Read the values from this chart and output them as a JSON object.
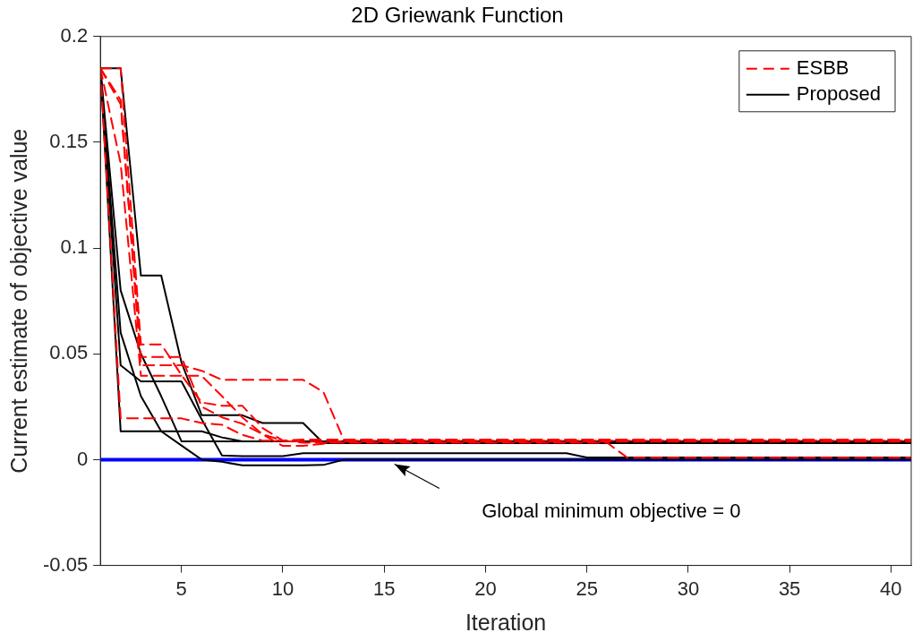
{
  "chart_data": {
    "type": "line",
    "title": "2D Griewank Function",
    "xlabel": "Iteration",
    "ylabel": "Current estimate of objective value",
    "x": [
      1,
      2,
      3,
      4,
      5,
      6,
      7,
      8,
      9,
      10,
      11,
      12,
      13,
      14,
      15,
      16,
      17,
      18,
      19,
      20,
      21,
      22,
      23,
      24,
      25,
      26,
      27,
      28,
      29,
      30,
      31,
      32,
      33,
      34,
      35,
      36,
      37,
      38,
      39,
      40,
      41
    ],
    "xlim": [
      1,
      41
    ],
    "xticks": [
      5,
      10,
      15,
      20,
      25,
      30,
      35,
      40
    ],
    "ylim": [
      -0.05,
      0.2
    ],
    "yticks": [
      -0.05,
      0,
      0.05,
      0.1,
      0.15,
      0.2
    ],
    "grid": false,
    "legend": "top right",
    "marker": "none",
    "series": [
      {
        "name": "ESBB",
        "color": "#ff0000",
        "line_style": "dashed",
        "values": [
          0.185,
          0.185,
          0.0545,
          0.0545,
          0.04,
          0.027,
          0.0255,
          0.0255,
          0.015,
          0.009,
          0.0095,
          0.0095,
          0.0095,
          0.0095,
          0.0095,
          0.0095,
          0.0095,
          0.0095,
          0.0095,
          0.0095,
          0.0095,
          0.0095,
          0.0095,
          0.0095,
          0.0095,
          0.0095,
          0.0095,
          0.0095,
          0.0095,
          0.0095,
          0.0095,
          0.0095,
          0.0095,
          0.0095,
          0.0095,
          0.0095,
          0.0095,
          0.0095,
          0.0095,
          0.0095,
          0.0095
        ]
      },
      {
        "color": "#ff0000",
        "line_style": "dashed",
        "values": [
          0.185,
          0.168,
          0.0485,
          0.0485,
          0.0485,
          0.025,
          0.02,
          0.017,
          0.012,
          0.0065,
          0.0065,
          0.0075,
          0.009,
          0.009,
          0.009,
          0.009,
          0.009,
          0.009,
          0.009,
          0.009,
          0.009,
          0.009,
          0.009,
          0.009,
          0.009,
          0.009,
          0.009,
          0.009,
          0.009,
          0.009,
          0.009,
          0.009,
          0.009,
          0.009,
          0.009,
          0.009,
          0.009,
          0.009,
          0.009,
          0.009,
          0.009
        ]
      },
      {
        "color": "#ff0000",
        "line_style": "dashed",
        "values": [
          0.185,
          0.14,
          0.0396,
          0.0396,
          0.0396,
          0.0396,
          0.03,
          0.02,
          0.012,
          0.009,
          0.008,
          0.008,
          0.008,
          0.008,
          0.008,
          0.008,
          0.008,
          0.008,
          0.008,
          0.008,
          0.008,
          0.008,
          0.008,
          0.008,
          0.008,
          0.008,
          0.0009,
          0.0009,
          0.0009,
          0.0009,
          0.0009,
          0.0009,
          0.0009,
          0.0009,
          0.0009,
          0.0009,
          0.0009,
          0.0009,
          0.0009,
          0.0009,
          0.0009
        ]
      },
      {
        "color": "#ff0000",
        "line_style": "dashed",
        "values": [
          0.185,
          0.17,
          0.0446,
          0.0446,
          0.0446,
          0.042,
          0.0377,
          0.0377,
          0.0377,
          0.0377,
          0.0377,
          0.032,
          0.0095,
          0.0095,
          0.0095,
          0.0095,
          0.0095,
          0.0095,
          0.0095,
          0.0095,
          0.0095,
          0.0095,
          0.0095,
          0.0095,
          0.0095,
          0.0095,
          0.0095,
          0.0095,
          0.0095,
          0.0095,
          0.0095,
          0.0095,
          0.0095,
          0.0095,
          0.0095,
          0.0095,
          0.0095,
          0.0095,
          0.0095,
          0.0095,
          0.0095
        ]
      },
      {
        "color": "#ff0000",
        "line_style": "dashed",
        "values": [
          0.185,
          0.0195,
          0.0195,
          0.0195,
          0.0195,
          0.0173,
          0.0165,
          0.0117,
          0.009,
          0.009,
          0.0085,
          0.0085,
          0.0085,
          0.0085,
          0.0085,
          0.0085,
          0.0085,
          0.0085,
          0.0085,
          0.0085,
          0.0085,
          0.0085,
          0.0085,
          0.0085,
          0.0085,
          0.0085,
          0.0085,
          0.0085,
          0.0085,
          0.0085,
          0.0085,
          0.0085,
          0.0085,
          0.0085,
          0.0085,
          0.0085,
          0.0085,
          0.0085,
          0.0085,
          0.0085,
          0.0085
        ]
      },
      {
        "name": "Proposed",
        "color": "#000000",
        "line_style": "solid",
        "values": [
          0.185,
          0.185,
          0.087,
          0.087,
          0.046,
          0.021,
          0.021,
          0.021,
          0.0173,
          0.0173,
          0.0173,
          0.0078,
          0.0078,
          0.0078,
          0.0078,
          0.0078,
          0.0078,
          0.0078,
          0.0078,
          0.0078,
          0.0078,
          0.0078,
          0.0078,
          0.0078,
          0.0078,
          0.0078,
          0.0078,
          0.0078,
          0.0078,
          0.0078,
          0.0078,
          0.0078,
          0.0078,
          0.0078,
          0.0078,
          0.0078,
          0.0078,
          0.0078,
          0.0078,
          0.0078,
          0.0078
        ]
      },
      {
        "color": "#000000",
        "line_style": "solid",
        "values": [
          0.185,
          0.0446,
          0.037,
          0.037,
          0.037,
          0.019,
          0.002,
          0.0017,
          0.0017,
          0.0017,
          0.003,
          0.003,
          0.003,
          0.003,
          0.003,
          0.003,
          0.003,
          0.003,
          0.003,
          0.003,
          0.003,
          0.003,
          0.003,
          0.003,
          0.001,
          0.001,
          0.001,
          0.001,
          0.001,
          0.001,
          0.001,
          0.001,
          0.001,
          0.001,
          0.001,
          0.001,
          0.001,
          0.001,
          0.001,
          0.001,
          0.001
        ]
      },
      {
        "color": "#000000",
        "line_style": "solid",
        "values": [
          0.185,
          0.08,
          0.05,
          0.03,
          0.0087,
          0.0087,
          0.0087,
          0.0087,
          0.0087,
          0.0087,
          0.0087,
          0.0087,
          0.0087,
          0.0087,
          0.0087,
          0.0087,
          0.0087,
          0.0087,
          0.0087,
          0.0087,
          0.0087,
          0.0087,
          0.0087,
          0.0087,
          0.0087,
          0.0087,
          0.0087,
          0.0087,
          0.0087,
          0.0087,
          0.0087,
          0.0087,
          0.0087,
          0.0087,
          0.0087,
          0.0087,
          0.0087,
          0.0087,
          0.0087,
          0.0087,
          0.0087
        ]
      },
      {
        "color": "#000000",
        "line_style": "solid",
        "values": [
          0.185,
          0.0134,
          0.0134,
          0.0134,
          0.0134,
          0.0134,
          0.0105,
          0.0087,
          0.0087,
          0.0087,
          0.0087,
          0.0087,
          0.0087,
          0.0087,
          0.0087,
          0.0087,
          0.0087,
          0.0087,
          0.0087,
          0.0087,
          0.0087,
          0.0087,
          0.0087,
          0.0087,
          0.0087,
          0.0087,
          0.0087,
          0.0087,
          0.0087,
          0.0087,
          0.0087,
          0.0087,
          0.0087,
          0.0087,
          0.0087,
          0.0087,
          0.0087,
          0.0087,
          0.0087,
          0.0087,
          0.0087
        ]
      },
      {
        "color": "#000000",
        "line_style": "solid",
        "values": [
          0.185,
          0.06,
          0.03,
          0.0134,
          0.0067,
          0,
          -0.001,
          -0.0027,
          -0.0027,
          -0.0027,
          -0.0027,
          -0.0025,
          0,
          0,
          0,
          0,
          0,
          0,
          0,
          0,
          0,
          0,
          0,
          0,
          0,
          0,
          0,
          0,
          0,
          0,
          0,
          0,
          0,
          0,
          0,
          0,
          0,
          0,
          0,
          0,
          0
        ]
      }
    ],
    "ref_lines": [
      {
        "axis": "y",
        "value": 0,
        "color": "#0000ff",
        "line_style": "solid"
      }
    ],
    "annotations": [
      "Global minimum objective = 0"
    ]
  }
}
